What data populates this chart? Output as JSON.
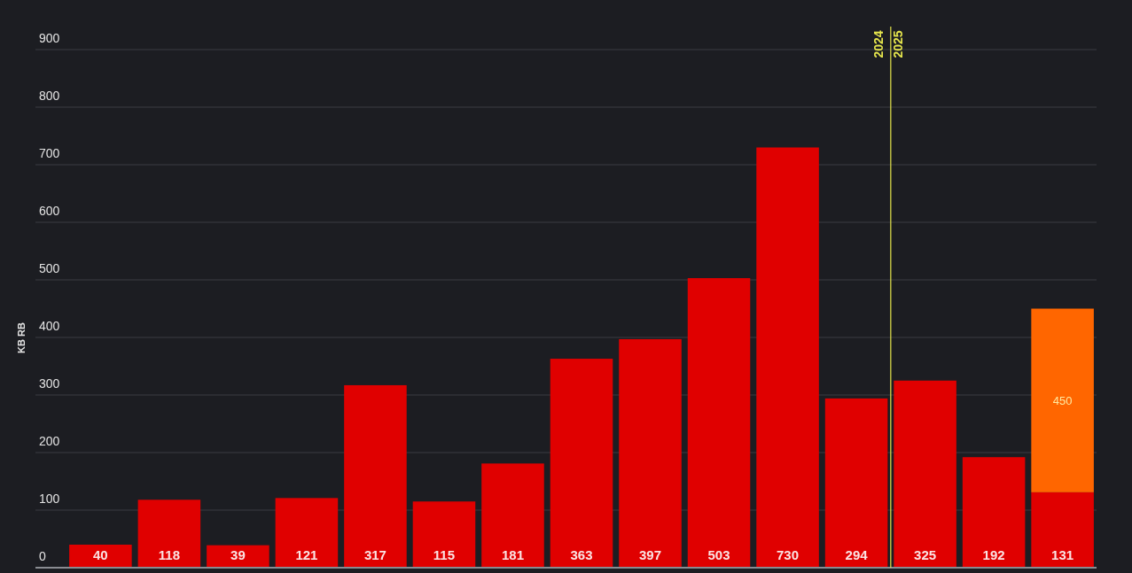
{
  "chart_data": {
    "type": "bar",
    "ylabel": "KB RB",
    "categories": [
      null,
      null,
      null,
      null,
      null,
      null,
      null,
      null,
      null,
      null,
      null,
      null,
      null,
      null,
      null
    ],
    "stacked": true,
    "series": [
      {
        "color": "#e00000",
        "values": [
          40,
          118,
          39,
          121,
          317,
          115,
          181,
          363,
          397,
          503,
          730,
          294,
          325,
          192,
          131
        ],
        "value_labels": [
          "40",
          "118",
          "39",
          "121",
          "317",
          "115",
          "181",
          "363",
          "397",
          "503",
          "730",
          "294",
          "325",
          "192",
          "131"
        ]
      },
      {
        "color": "#ff6600",
        "values": [
          null,
          null,
          null,
          null,
          null,
          null,
          null,
          null,
          null,
          null,
          null,
          null,
          null,
          null,
          319
        ]
      }
    ],
    "totals": [
      null,
      null,
      null,
      null,
      null,
      null,
      null,
      null,
      null,
      null,
      null,
      null,
      null,
      null,
      "450"
    ],
    "ylim": [
      0,
      900
    ],
    "yticks": [
      0,
      100,
      200,
      300,
      400,
      500,
      600,
      700,
      800,
      900
    ],
    "grid": "y",
    "annotations": [
      {
        "text": "2024"
      },
      {
        "text": "2025"
      }
    ]
  }
}
